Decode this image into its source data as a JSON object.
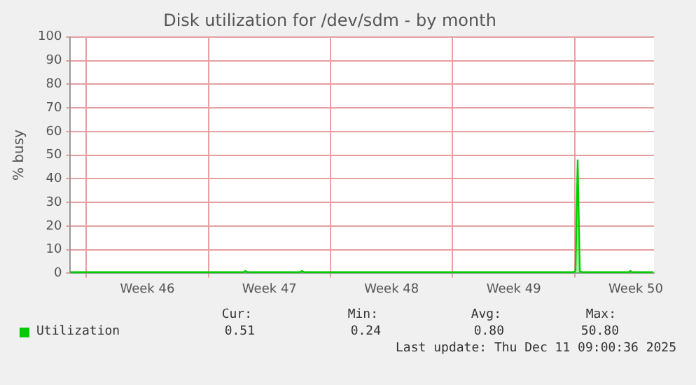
{
  "chart_data": {
    "type": "area",
    "title": "Disk utilization for /dev/sdm - by month",
    "ylabel": "% busy",
    "x": [
      "2025-11-09T02:00",
      "2025-11-12T00:00",
      "2025-11-16T00:00",
      "2025-11-19T00:00",
      "2025-11-19T03:00",
      "2025-11-19T06:00",
      "2025-11-22T06:00",
      "2025-11-22T09:00",
      "2025-11-22T12:00",
      "2025-11-26T00:00",
      "2025-12-01T00:00",
      "2025-12-07T22:00",
      "2025-12-08T01:00",
      "2025-12-08T04:00",
      "2025-12-08T07:00",
      "2025-12-08T10:00",
      "2025-12-11T02:00",
      "2025-12-11T04:30",
      "2025-12-11T07:00",
      "2025-12-12T12:00"
    ],
    "series": [
      {
        "name": "Utilization",
        "color": "#00cc00",
        "values": [
          0.5,
          0.5,
          0.5,
          0.5,
          1.0,
          0.5,
          0.5,
          1.0,
          0.5,
          0.5,
          0.5,
          0.5,
          1.0,
          47.8,
          0.8,
          0.5,
          0.5,
          1.0,
          0.5,
          0.5
        ]
      }
    ],
    "xlim": [
      "2025-11-09T02:00",
      "2025-12-12T13:00"
    ],
    "xticks": [
      {
        "value": "2025-11-10T00:00",
        "label": null
      },
      {
        "value": "2025-11-13T12:00",
        "label": "Week 46"
      },
      {
        "value": "2025-11-17T00:00",
        "label": null
      },
      {
        "value": "2025-11-20T12:00",
        "label": "Week 47"
      },
      {
        "value": "2025-11-24T00:00",
        "label": null
      },
      {
        "value": "2025-11-27T12:00",
        "label": "Week 48"
      },
      {
        "value": "2025-12-01T00:00",
        "label": null
      },
      {
        "value": "2025-12-04T12:00",
        "label": "Week 49"
      },
      {
        "value": "2025-12-08T00:00",
        "label": null
      },
      {
        "value": "2025-12-11T12:00",
        "label": "Week 50"
      }
    ],
    "ylim": [
      0,
      100
    ],
    "yticks": [
      0,
      10,
      20,
      30,
      40,
      50,
      60,
      70,
      80,
      90,
      100
    ],
    "grid": true,
    "legend": "bottom",
    "annotations": [
      "Cur:",
      "Min:",
      "Avg:",
      "Max:",
      "0.51",
      "0.24",
      "0.80",
      "50.80",
      "Last update: Thu Dec 11 09:00:36 2025"
    ]
  }
}
